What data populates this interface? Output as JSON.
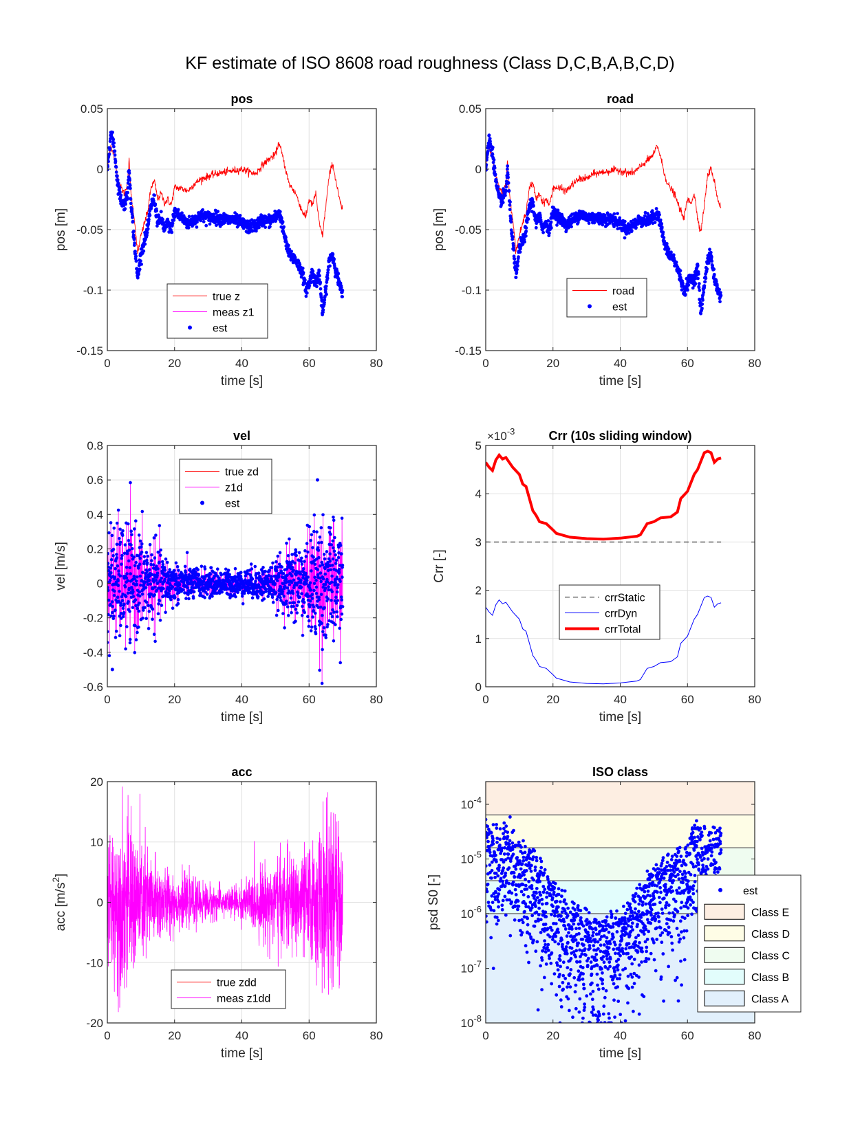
{
  "figure": {
    "title": "KF estimate of ISO 8608 road roughness (Class D,C,B,A,B,C,D)"
  },
  "chart_data": [
    {
      "id": "pos",
      "type": "line",
      "title": "pos",
      "xlabel": "time [s]",
      "ylabel": "pos [m]",
      "xlim": [
        0,
        80
      ],
      "ylim": [
        -0.15,
        0.05
      ],
      "xticks": [
        "0",
        "20",
        "40",
        "60",
        "80"
      ],
      "yticks": [
        "-0.15",
        "-0.1",
        "-0.05",
        "0",
        "0.05"
      ],
      "grid": true,
      "legend_position": "bottom-center",
      "series": [
        {
          "name": "true z",
          "style": "line",
          "color": "#ff0000",
          "x": [
            0,
            1,
            2,
            3,
            4,
            5,
            6,
            6.5,
            7,
            8,
            9,
            10,
            11,
            12,
            13,
            14,
            15,
            16,
            17,
            18,
            19,
            20,
            22,
            24,
            26,
            28,
            30,
            32,
            34,
            36,
            38,
            40,
            42,
            44,
            46,
            48,
            50,
            51,
            52,
            53,
            54,
            56,
            58,
            59,
            60,
            61,
            62,
            63,
            64,
            65,
            66,
            67,
            68,
            69,
            70
          ],
          "y": [
            0,
            0.02,
            0.01,
            -0.005,
            -0.015,
            -0.02,
            -0.012,
            0.008,
            -0.02,
            -0.04,
            -0.07,
            -0.055,
            -0.045,
            -0.035,
            -0.015,
            -0.01,
            -0.025,
            -0.02,
            -0.028,
            -0.025,
            -0.03,
            -0.015,
            -0.016,
            -0.018,
            -0.012,
            -0.008,
            -0.006,
            -0.004,
            -0.003,
            -0.002,
            -0.001,
            0,
            -0.002,
            -0.004,
            0.003,
            0.008,
            0.012,
            0.022,
            0.012,
            0.0,
            -0.012,
            -0.02,
            -0.035,
            -0.04,
            -0.025,
            -0.03,
            -0.02,
            -0.045,
            -0.055,
            -0.03,
            -0.005,
            0.005,
            -0.01,
            -0.025,
            -0.035
          ]
        },
        {
          "name": "meas z1",
          "style": "line",
          "color": "#ff00ff",
          "x": [],
          "y": []
        },
        {
          "name": "est",
          "style": "markers",
          "color": "#0000ff",
          "x": [
            0,
            1,
            2,
            3,
            4,
            5,
            6,
            6.5,
            7,
            8,
            9,
            10,
            11,
            12,
            13,
            14,
            15,
            16,
            17,
            18,
            19,
            20,
            22,
            24,
            26,
            28,
            30,
            32,
            34,
            36,
            38,
            40,
            42,
            44,
            46,
            48,
            50,
            51,
            52,
            53,
            54,
            56,
            58,
            59,
            60,
            61,
            62,
            63,
            64,
            65,
            66,
            67,
            68,
            69,
            70
          ],
          "y": [
            0,
            0.03,
            0.02,
            -0.01,
            -0.025,
            -0.03,
            -0.02,
            0.0,
            -0.025,
            -0.06,
            -0.09,
            -0.07,
            -0.06,
            -0.05,
            -0.03,
            -0.025,
            -0.045,
            -0.04,
            -0.05,
            -0.045,
            -0.05,
            -0.035,
            -0.04,
            -0.045,
            -0.042,
            -0.038,
            -0.04,
            -0.04,
            -0.041,
            -0.042,
            -0.042,
            -0.045,
            -0.048,
            -0.047,
            -0.042,
            -0.043,
            -0.04,
            -0.035,
            -0.045,
            -0.06,
            -0.07,
            -0.075,
            -0.085,
            -0.1,
            -0.095,
            -0.085,
            -0.095,
            -0.085,
            -0.12,
            -0.1,
            -0.075,
            -0.07,
            -0.085,
            -0.095,
            -0.105
          ]
        }
      ]
    },
    {
      "id": "road",
      "type": "line",
      "title": "road",
      "xlabel": "time [s]",
      "ylabel": "pos [m]",
      "xlim": [
        0,
        80
      ],
      "ylim": [
        -0.15,
        0.05
      ],
      "xticks": [
        "0",
        "20",
        "40",
        "60",
        "80"
      ],
      "yticks": [
        "-0.15",
        "-0.1",
        "-0.05",
        "0",
        "0.05"
      ],
      "grid": true,
      "legend_position": "bottom-center",
      "series": [
        {
          "name": "road",
          "style": "line",
          "color": "#ff0000",
          "x": [
            0,
            1,
            2,
            3,
            4,
            5,
            6,
            6.5,
            7,
            8,
            9,
            10,
            11,
            12,
            13,
            14,
            15,
            16,
            17,
            18,
            19,
            20,
            22,
            24,
            26,
            28,
            30,
            32,
            34,
            36,
            38,
            40,
            42,
            44,
            46,
            48,
            50,
            51,
            52,
            53,
            54,
            56,
            58,
            59,
            60,
            61,
            62,
            63,
            64,
            65,
            66,
            67,
            68,
            69,
            70
          ],
          "y": [
            0,
            0.02,
            0.008,
            -0.005,
            -0.015,
            -0.02,
            -0.012,
            0.007,
            -0.02,
            -0.04,
            -0.068,
            -0.055,
            -0.045,
            -0.035,
            -0.015,
            -0.012,
            -0.025,
            -0.02,
            -0.028,
            -0.025,
            -0.03,
            -0.015,
            -0.016,
            -0.018,
            -0.012,
            -0.008,
            -0.008,
            -0.004,
            -0.003,
            -0.002,
            -0.001,
            -0.001,
            -0.003,
            -0.003,
            0.002,
            0.007,
            0.012,
            0.02,
            0.01,
            -0.002,
            -0.012,
            -0.02,
            -0.035,
            -0.04,
            -0.025,
            -0.028,
            -0.02,
            -0.04,
            -0.052,
            -0.03,
            -0.005,
            0.0,
            -0.01,
            -0.025,
            -0.032
          ]
        },
        {
          "name": "est",
          "style": "markers",
          "color": "#0000ff",
          "x": [
            0,
            1,
            2,
            3,
            4,
            5,
            6,
            6.5,
            7,
            8,
            9,
            10,
            11,
            12,
            13,
            14,
            15,
            16,
            17,
            18,
            19,
            20,
            22,
            24,
            26,
            28,
            30,
            32,
            34,
            36,
            38,
            40,
            42,
            44,
            46,
            48,
            50,
            51,
            52,
            53,
            54,
            56,
            58,
            59,
            60,
            61,
            62,
            63,
            64,
            65,
            66,
            67,
            68,
            69,
            70
          ],
          "y": [
            0,
            0.025,
            0.015,
            -0.01,
            -0.025,
            -0.025,
            -0.018,
            0.0,
            -0.025,
            -0.06,
            -0.09,
            -0.065,
            -0.06,
            -0.05,
            -0.03,
            -0.028,
            -0.045,
            -0.04,
            -0.048,
            -0.045,
            -0.05,
            -0.035,
            -0.04,
            -0.046,
            -0.042,
            -0.037,
            -0.04,
            -0.04,
            -0.041,
            -0.041,
            -0.042,
            -0.045,
            -0.05,
            -0.046,
            -0.042,
            -0.043,
            -0.04,
            -0.035,
            -0.045,
            -0.06,
            -0.068,
            -0.075,
            -0.09,
            -0.102,
            -0.095,
            -0.09,
            -0.092,
            -0.08,
            -0.12,
            -0.095,
            -0.075,
            -0.072,
            -0.09,
            -0.1,
            -0.107
          ]
        }
      ]
    },
    {
      "id": "vel",
      "type": "scatter",
      "title": "vel",
      "xlabel": "time [s]",
      "ylabel": "vel [m/s]",
      "xlim": [
        0,
        80
      ],
      "ylim": [
        -0.6,
        0.8
      ],
      "xticks": [
        "0",
        "20",
        "40",
        "60",
        "80"
      ],
      "yticks": [
        "-0.6",
        "-0.4",
        "-0.2",
        "0",
        "0.2",
        "0.4",
        "0.6",
        "0.8"
      ],
      "grid": true,
      "legend_position": "top-center",
      "envelope": {
        "x": [
          0,
          5,
          10,
          15,
          20,
          30,
          40,
          50,
          55,
          60,
          62.5,
          65,
          70
        ],
        "amplitude": [
          0.45,
          0.45,
          0.4,
          0.28,
          0.15,
          0.1,
          0.1,
          0.15,
          0.3,
          0.35,
          0.6,
          0.45,
          0.42
        ]
      },
      "series": [
        {
          "name": "true zd",
          "style": "line",
          "color": "#ff0000"
        },
        {
          "name": "z1d",
          "style": "line",
          "color": "#ff00ff"
        },
        {
          "name": "est",
          "style": "markers",
          "color": "#0000ff"
        }
      ],
      "peaks": {
        "max": 0.6,
        "max_at": 62.5,
        "min": -0.5,
        "min_at": 1.5
      }
    },
    {
      "id": "crr",
      "type": "line",
      "title": "Crr (10s sliding window)",
      "xlabel": "time [s]",
      "ylabel": "Crr [-]",
      "y_multiplier": "×10^-3",
      "xlim": [
        0,
        80
      ],
      "ylim": [
        0,
        5
      ],
      "xticks": [
        "0",
        "20",
        "40",
        "60",
        "80"
      ],
      "yticks": [
        "0",
        "1",
        "2",
        "3",
        "4",
        "5"
      ],
      "grid": true,
      "legend_position": "center",
      "series": [
        {
          "name": "crrStatic",
          "style": "dashed",
          "color": "#000000",
          "x": [
            0,
            70
          ],
          "y": [
            3.0,
            3.0
          ]
        },
        {
          "name": "crrDyn",
          "style": "line",
          "color": "#0000ff",
          "x": [
            0,
            1,
            2,
            3,
            4,
            5,
            6,
            8,
            10,
            11,
            12,
            13,
            14,
            15,
            16,
            18,
            20,
            21,
            25,
            30,
            35,
            40,
            45,
            46,
            48,
            50,
            52,
            55,
            57,
            58,
            60,
            62,
            63,
            65,
            66,
            67,
            68,
            69,
            70
          ],
          "y": [
            1.65,
            1.55,
            1.48,
            1.7,
            1.8,
            1.72,
            1.75,
            1.55,
            1.4,
            1.2,
            1.15,
            0.9,
            0.65,
            0.55,
            0.42,
            0.38,
            0.25,
            0.18,
            0.1,
            0.07,
            0.06,
            0.08,
            0.12,
            0.15,
            0.38,
            0.42,
            0.5,
            0.52,
            0.62,
            0.9,
            1.05,
            1.4,
            1.5,
            1.85,
            1.88,
            1.85,
            1.65,
            1.72,
            1.74
          ]
        },
        {
          "name": "crrTotal",
          "style": "thick-line",
          "color": "#ff0000",
          "x": [
            0,
            1,
            2,
            3,
            4,
            5,
            6,
            8,
            10,
            11,
            12,
            13,
            14,
            15,
            16,
            18,
            20,
            21,
            25,
            30,
            35,
            40,
            45,
            46,
            48,
            50,
            52,
            55,
            57,
            58,
            60,
            62,
            63,
            65,
            66,
            67,
            68,
            69,
            70
          ],
          "y": [
            4.65,
            4.55,
            4.48,
            4.7,
            4.8,
            4.72,
            4.75,
            4.55,
            4.4,
            4.2,
            4.15,
            3.9,
            3.65,
            3.55,
            3.42,
            3.38,
            3.25,
            3.18,
            3.1,
            3.07,
            3.06,
            3.08,
            3.12,
            3.15,
            3.38,
            3.42,
            3.5,
            3.52,
            3.62,
            3.9,
            4.05,
            4.4,
            4.5,
            4.85,
            4.88,
            4.85,
            4.65,
            4.72,
            4.74
          ]
        }
      ]
    },
    {
      "id": "acc",
      "type": "line",
      "title": "acc",
      "xlabel": "time [s]",
      "ylabel": "acc [m/s^2]",
      "xlim": [
        0,
        80
      ],
      "ylim": [
        -20,
        20
      ],
      "xticks": [
        "0",
        "20",
        "40",
        "60",
        "80"
      ],
      "yticks": [
        "-20",
        "-10",
        "0",
        "10",
        "20"
      ],
      "grid": true,
      "legend_position": "bottom-center",
      "envelope": {
        "x": [
          0,
          5,
          10,
          15,
          20,
          30,
          35,
          40,
          50,
          55,
          60,
          65,
          70
        ],
        "amplitude": [
          15,
          19,
          14,
          9,
          6,
          4,
          3,
          4,
          10,
          10,
          12,
          19,
          16
        ]
      },
      "series": [
        {
          "name": "true zdd",
          "style": "line",
          "color": "#ff0000"
        },
        {
          "name": "meas z1dd",
          "style": "line",
          "color": "#ff00ff"
        }
      ]
    },
    {
      "id": "iso",
      "type": "scatter",
      "title": "ISO class",
      "xlabel": "time [s]",
      "ylabel": "psd S0 [-]",
      "yscale": "log",
      "xlim": [
        0,
        80
      ],
      "ylim": [
        1e-08,
        0.00026
      ],
      "xticks": [
        "0",
        "20",
        "40",
        "60",
        "80"
      ],
      "yticks": [
        "10^-8",
        "10^-7",
        "10^-6",
        "10^-5",
        "10^-4"
      ],
      "grid": false,
      "legend_position": "right",
      "bands": [
        {
          "name": "Class E",
          "from": 6.4e-05,
          "to": 0.00026,
          "color": "#fdeee2"
        },
        {
          "name": "Class D",
          "from": 1.6e-05,
          "to": 6.4e-05,
          "color": "#fefde6"
        },
        {
          "name": "Class C",
          "from": 4e-06,
          "to": 1.6e-05,
          "color": "#effcf0"
        },
        {
          "name": "Class B",
          "from": 1e-06,
          "to": 4e-06,
          "color": "#e2fdfc"
        },
        {
          "name": "Class A",
          "from": 1e-08,
          "to": 1e-06,
          "color": "#e2f0fc"
        }
      ],
      "envelope": {
        "x": [
          0,
          5,
          7,
          10,
          15,
          20,
          25,
          30,
          35,
          40,
          45,
          50,
          55,
          60,
          62,
          65,
          70
        ],
        "upper_log10": [
          -4.1,
          -4.4,
          -4.1,
          -4.5,
          -4.8,
          -5.3,
          -5.6,
          -5.9,
          -6.0,
          -5.8,
          -5.4,
          -5.0,
          -4.8,
          -4.6,
          -4.1,
          -4.3,
          -4.2
        ]
      },
      "series": [
        {
          "name": "est",
          "style": "markers",
          "color": "#0000ff"
        }
      ]
    }
  ]
}
